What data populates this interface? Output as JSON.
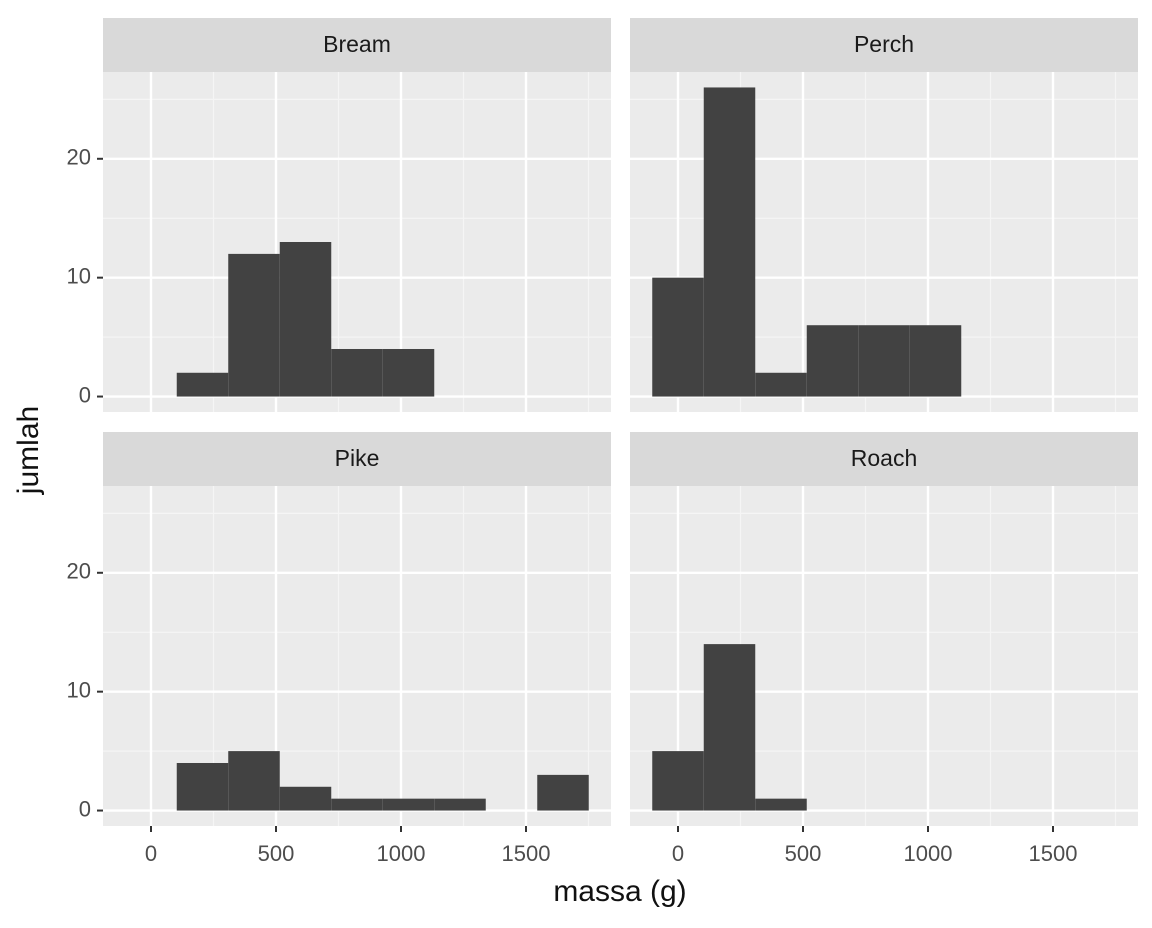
{
  "chart_data": {
    "type": "histogram",
    "xlabel": "massa (g)",
    "ylabel": "jumlah",
    "bins": [
      -103,
      103,
      309,
      515,
      721,
      927,
      1133,
      1339,
      1545,
      1751
    ],
    "facets": [
      {
        "title": "Bream",
        "counts": [
          0,
          2,
          12,
          13,
          4,
          4,
          0,
          0,
          0
        ]
      },
      {
        "title": "Perch",
        "counts": [
          10,
          26,
          2,
          6,
          6,
          6,
          0,
          0,
          0
        ]
      },
      {
        "title": "Pike",
        "counts": [
          0,
          4,
          5,
          2,
          1,
          1,
          1,
          0,
          3
        ]
      },
      {
        "title": "Roach",
        "counts": [
          5,
          14,
          1,
          0,
          0,
          0,
          0,
          0,
          0
        ]
      }
    ],
    "color": "#424242",
    "xlim": [
      -192,
      1840
    ],
    "ylim": [
      -1.3,
      27.3
    ],
    "xticks": [
      0,
      500,
      1000,
      1500
    ],
    "yticks": [
      0,
      10,
      20
    ],
    "xminor": [
      250,
      750,
      1250,
      1750
    ],
    "yminor": [
      5,
      15,
      25
    ],
    "grid": true
  }
}
